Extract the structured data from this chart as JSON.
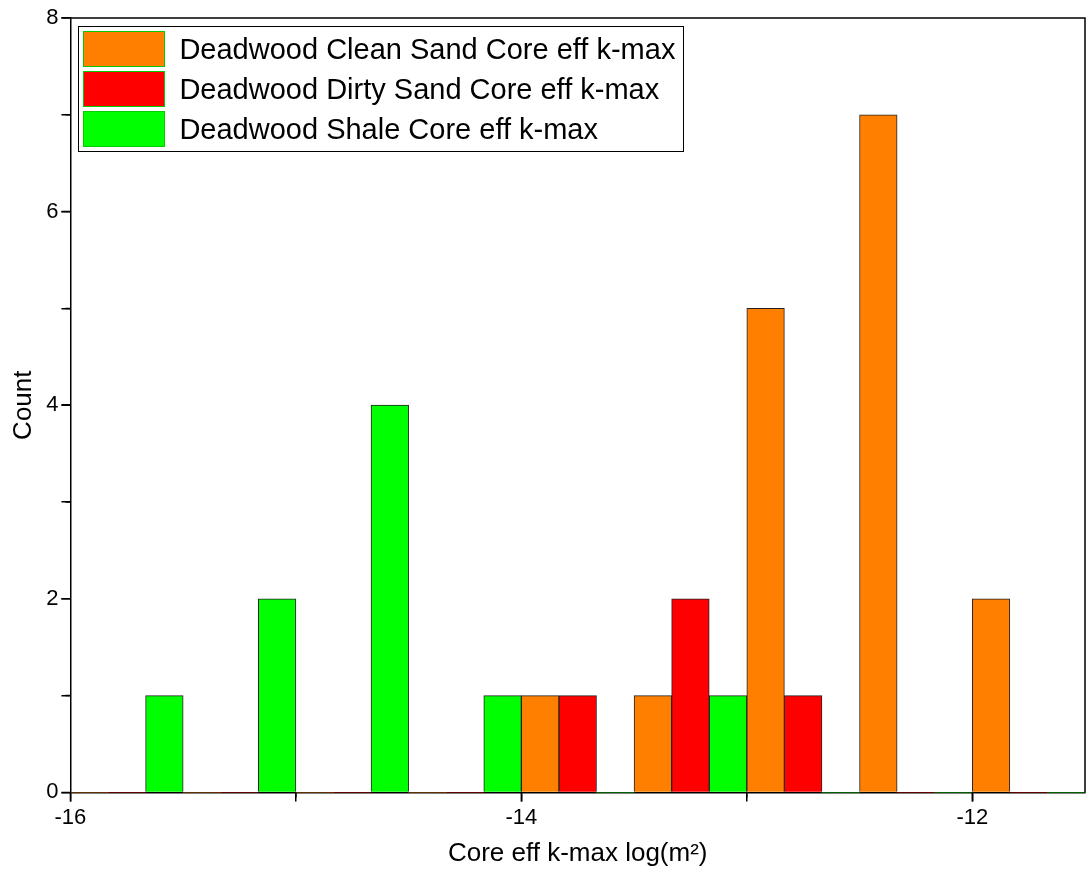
{
  "chart_data": {
    "type": "histogram",
    "xlabel": "Core eff k-max log(m²)",
    "ylabel": "Count",
    "bins": [
      -16,
      -15.5,
      -15,
      -14.5,
      -14,
      -13.5,
      -13,
      -12.5,
      -12,
      -11.5
    ],
    "series": [
      {
        "name": "Deadwood Clean Sand Core eff k-max",
        "color": "#ff7f00",
        "values": [
          0,
          0,
          0,
          0,
          1,
          1,
          5,
          7,
          2
        ]
      },
      {
        "name": "Deadwood Dirty Sand Core eff k-max",
        "color": "#ff0000",
        "values": [
          0,
          0,
          0,
          0,
          1,
          2,
          1,
          0,
          0
        ]
      },
      {
        "name": "Deadwood Shale Core eff k-max",
        "color": "#00ff00",
        "values": [
          1,
          2,
          4,
          1,
          0,
          1,
          0,
          0,
          0
        ]
      }
    ],
    "xlim": [
      -16,
      -11.5
    ],
    "xticks": [
      -16,
      {
        "value": -15,
        "label": null
      },
      -14,
      {
        "value": -13,
        "label": null
      },
      -12
    ],
    "ylim": [
      0,
      8
    ],
    "yticks": [
      0,
      {
        "value": 1,
        "label": null
      },
      2,
      {
        "value": 3,
        "label": null
      },
      4,
      {
        "value": 5,
        "label": null
      },
      6,
      {
        "value": 7,
        "label": null
      },
      8
    ],
    "grid": false,
    "legend": "top left"
  }
}
